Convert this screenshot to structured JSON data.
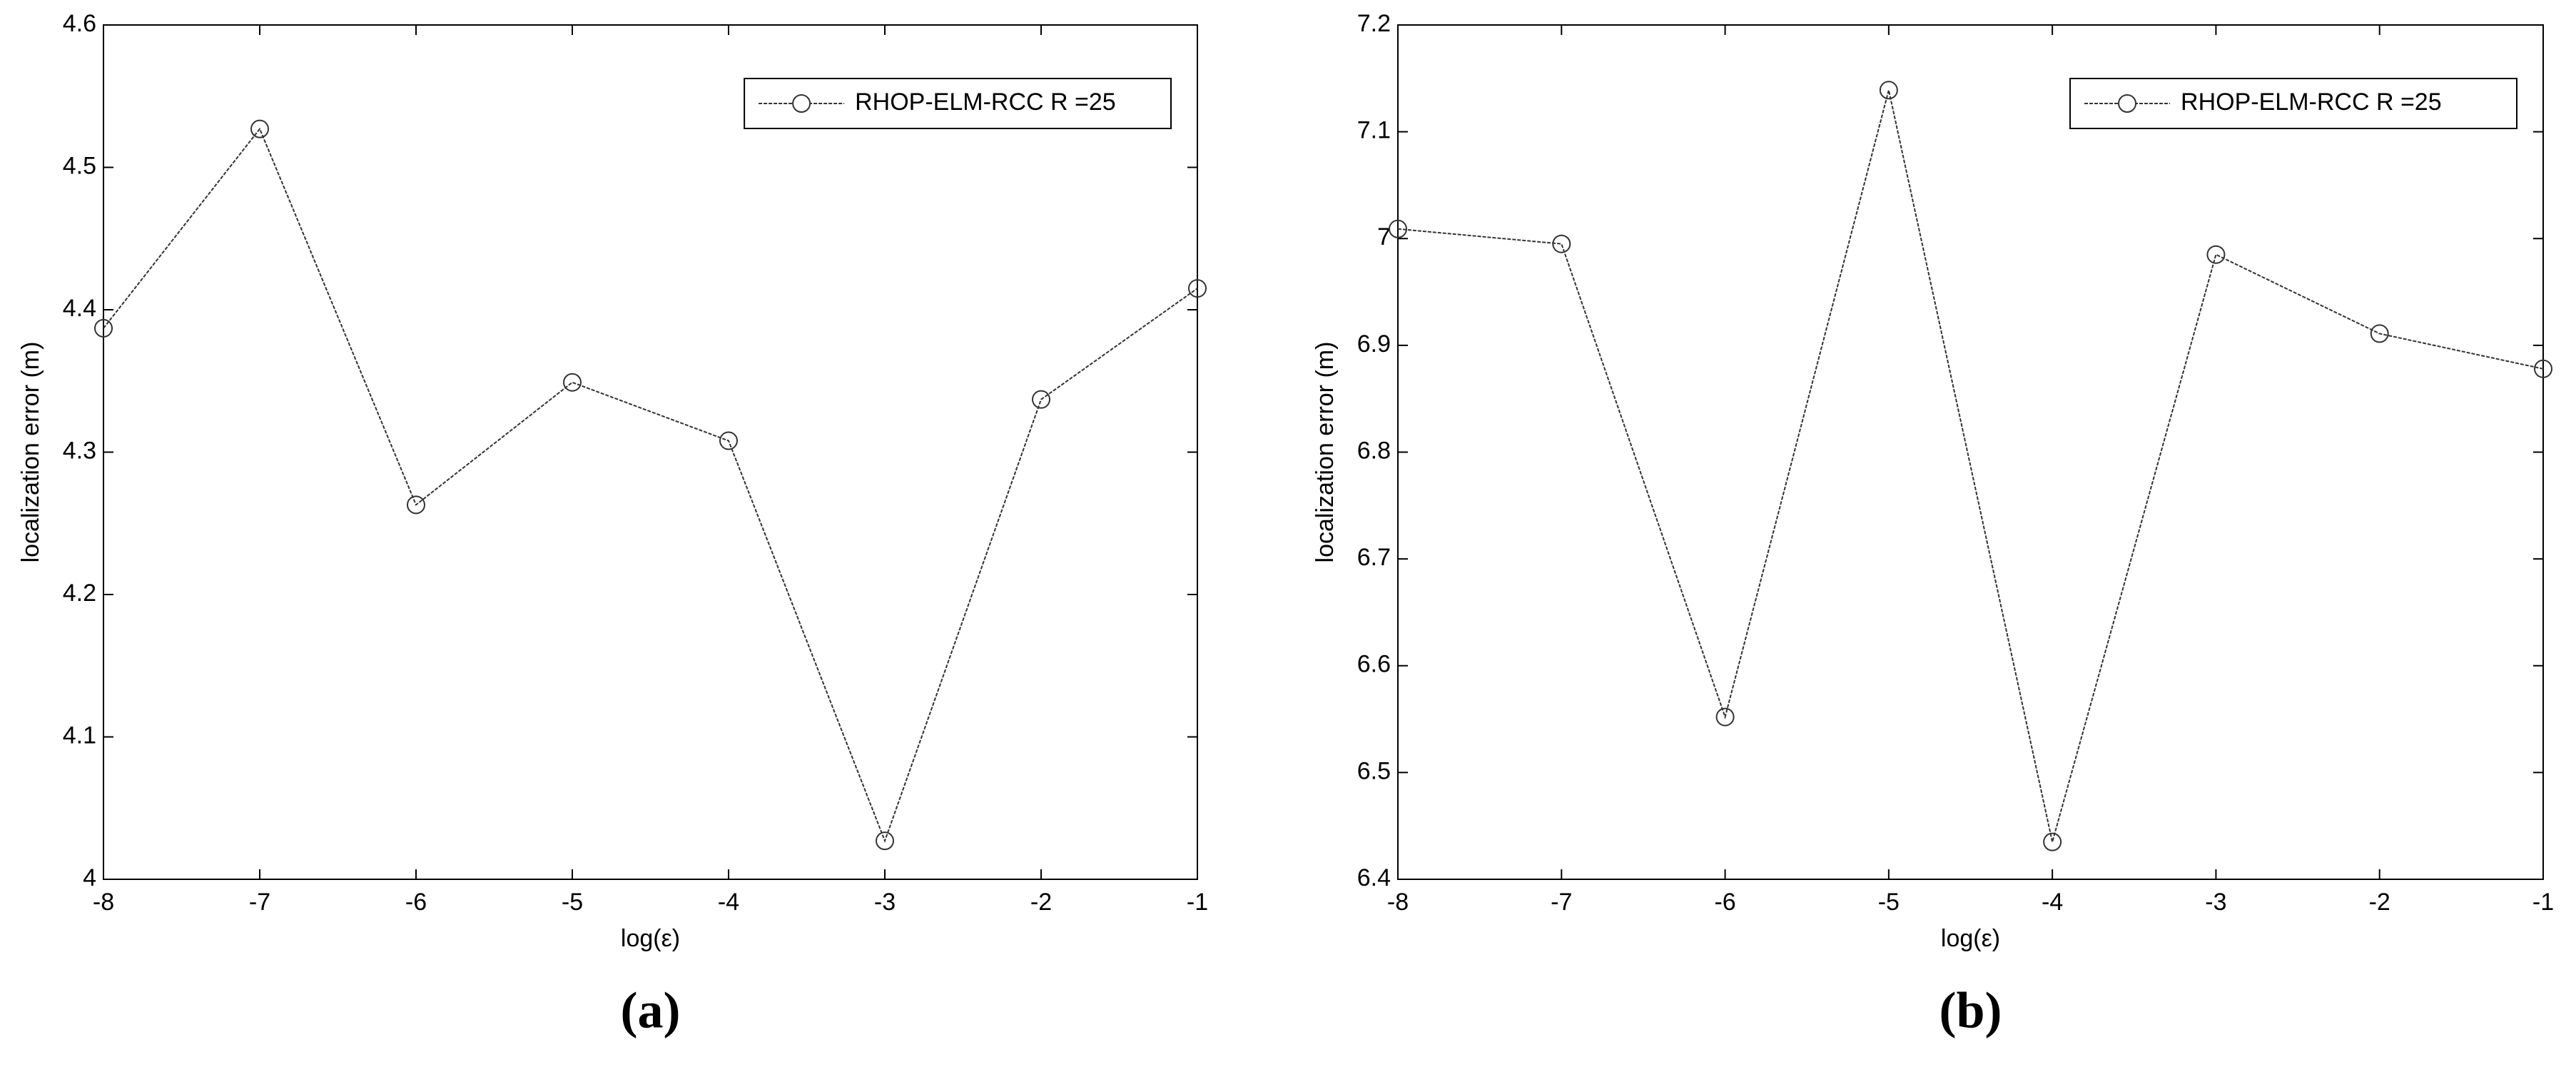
{
  "chart_data": [
    {
      "type": "line",
      "caption": "(a)",
      "xlabel": "log(ε)",
      "ylabel": "localization error (m)",
      "x": [
        -8,
        -7,
        -6,
        -5,
        -4,
        -3,
        -2,
        -1
      ],
      "series": [
        {
          "name": "RHOP-ELM-RCC R =25",
          "color": "#333333",
          "values": [
            4.387,
            4.527,
            4.263,
            4.349,
            4.308,
            4.027,
            4.337,
            4.415
          ]
        }
      ],
      "xlim": [
        -8,
        -1
      ],
      "xticks": [
        -8,
        -7,
        -6,
        -5,
        -4,
        -3,
        -2,
        -1
      ],
      "ylim": [
        4,
        4.6
      ],
      "yticks": [
        4,
        4.1,
        4.2,
        4.3,
        4.4,
        4.5,
        4.6
      ],
      "legend": "upper right"
    },
    {
      "type": "line",
      "caption": "(b)",
      "xlabel": "log(ε)",
      "ylabel": "localization error (m)",
      "x": [
        -8,
        -7,
        -6,
        -5,
        -4,
        -3,
        -2,
        -1
      ],
      "series": [
        {
          "name": "RHOP-ELM-RCC R =25",
          "color": "#333333",
          "values": [
            7.009,
            6.995,
            6.552,
            7.139,
            6.435,
            6.985,
            6.911,
            6.878
          ]
        }
      ],
      "xlim": [
        -8,
        -1
      ],
      "xticks": [
        -8,
        -7,
        -6,
        -5,
        -4,
        -3,
        -2,
        -1
      ],
      "ylim": [
        6.4,
        7.2
      ],
      "yticks": [
        6.4,
        6.5,
        6.6,
        6.7,
        6.8,
        6.9,
        7,
        7.1,
        7.2
      ],
      "legend": "upper right"
    }
  ]
}
